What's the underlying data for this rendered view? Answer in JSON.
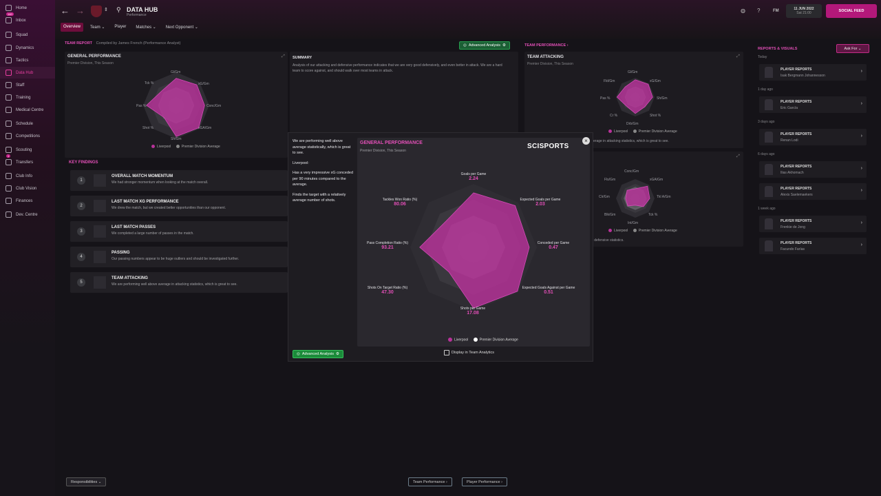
{
  "sidebar": {
    "items": [
      {
        "label": "Home",
        "icon": "home-icon"
      },
      {
        "label": "Inbox",
        "icon": "inbox-icon",
        "badge": "140"
      },
      {
        "label": "Squad",
        "icon": "squad-icon"
      },
      {
        "label": "Dynamics",
        "icon": "dynamics-icon"
      },
      {
        "label": "Tactics",
        "icon": "tactics-icon"
      },
      {
        "label": "Data Hub",
        "icon": "data-hub-icon",
        "active": true
      },
      {
        "label": "Staff",
        "icon": "staff-icon"
      },
      {
        "label": "Training",
        "icon": "training-icon"
      },
      {
        "label": "Medical Centre",
        "icon": "medical-icon"
      },
      {
        "label": "Schedule",
        "icon": "schedule-icon"
      },
      {
        "label": "Competitions",
        "icon": "trophy-icon"
      },
      {
        "label": "Scouting",
        "icon": "scouting-icon"
      },
      {
        "label": "Transfers",
        "icon": "transfers-icon",
        "badge": "1"
      },
      {
        "label": "Club Info",
        "icon": "club-info-icon"
      },
      {
        "label": "Club Vision",
        "icon": "club-vision-icon"
      },
      {
        "label": "Finances",
        "icon": "finances-icon"
      },
      {
        "label": "Dev. Centre",
        "icon": "dev-centre-icon"
      }
    ]
  },
  "header": {
    "title": "DATA HUB",
    "subtitle": "Performance",
    "date": "11 JUN 2022",
    "time": "Sat 21:00",
    "social_feed": "SOCIAL FEED",
    "fm": "FM",
    "tabs": [
      "Overview",
      "Team",
      "Player",
      "Matches",
      "Next Opponent"
    ]
  },
  "team_report": {
    "label": "TEAM REPORT",
    "compiled": "Compiled by James French (Performance Analyst)",
    "advanced_analysis": "Advanced Analysis"
  },
  "general_performance": {
    "title": "GENERAL PERFORMANCE",
    "subtitle": "Premier Division, This Season",
    "axes": [
      "Gl/Gm",
      "xG/Gm",
      "Conc/Gm",
      "xGA/Gm",
      "Sh/Gm",
      "Shot %",
      "Pas %",
      "Tck %"
    ],
    "legend": [
      "Liverpool",
      "Premier Division Average"
    ]
  },
  "summary": {
    "title": "SUMMARY",
    "text": "Analysis of our attacking and defensive performance indicates that we are very good defensively, and even better in attack. We are a hard team to score against, and should walk over most teams in attack."
  },
  "key_findings": {
    "title": "KEY FINDINGS",
    "items": [
      {
        "num": "1",
        "title": "OVERALL MATCH MOMENTUM",
        "desc": "We had stronger momentum when looking at the match overall."
      },
      {
        "num": "2",
        "title": "LAST MATCH XG PERFORMANCE",
        "desc": "We drew the match, but we created better opportunities than our opponent."
      },
      {
        "num": "3",
        "title": "LAST MATCH PASSES",
        "desc": "We completed a large number of passes in the match."
      },
      {
        "num": "4",
        "title": "PASSING",
        "desc": "Our passing numbers appear to be huge outliers and should be investigated further."
      },
      {
        "num": "5",
        "title": "TEAM ATTACKING",
        "desc": "We are performing well above average in attacking statistics, which is great to see."
      }
    ]
  },
  "team_performance": {
    "label": "TEAM PERFORMANCE",
    "attacking_title": "TEAM ATTACKING",
    "attacking_sub": "Premier Division, This Season",
    "attacking_axes": [
      "Gl/Gm",
      "xG/Gm",
      "Sh/Gm",
      "Shot %",
      "Drb/Gm",
      "Cr %",
      "Pas %",
      "Fld/Gm"
    ],
    "attacking_note": "erage in attacking statistics, which is great to see.",
    "defending_axes": [
      "Conc/Gm",
      "xGA/Gm",
      "Tkl A/Gm",
      "Tck %",
      "Int/Gm",
      "Blk/Gm",
      "Clr/Gm",
      "Fls/Gm"
    ],
    "defending_note": "in defensive statistics.",
    "legend": [
      "Liverpool",
      "Premier Division Average"
    ]
  },
  "reports": {
    "title": "REPORTS & VISUALS",
    "ask_for": "Ask For",
    "groups": [
      {
        "time": "Today",
        "items": [
          {
            "type": "PLAYER REPORTS",
            "name": "Isak Bergmann Johannesson"
          }
        ]
      },
      {
        "time": "1 day ago",
        "items": [
          {
            "type": "PLAYER REPORTS",
            "name": "Eric García"
          }
        ]
      },
      {
        "time": "3 days ago",
        "items": [
          {
            "type": "PLAYER REPORTS",
            "name": "Renan Lodi"
          }
        ]
      },
      {
        "time": "6 days ago",
        "items": [
          {
            "type": "PLAYER REPORTS",
            "name": "Ilias Akhomach"
          },
          {
            "type": "PLAYER REPORTS",
            "name": "Alexis Saelemaekers"
          }
        ]
      },
      {
        "time": "1 week ago",
        "items": [
          {
            "type": "PLAYER REPORTS",
            "name": "Frenkie de Jong"
          },
          {
            "type": "PLAYER REPORTS",
            "name": "Facundo Farías"
          }
        ]
      }
    ]
  },
  "modal": {
    "text1": "We are performing well above average statistically, which is great to see.",
    "text2": "Liverpool:",
    "text3": "Has a very impressive xG conceded per 90 minutes compared to the average.",
    "text4": "Finds the target with a relatively average number of shots.",
    "advanced_analysis": "Advanced Analysis",
    "display_label": "Display in Team Analytics",
    "brand": "SCISPORTS"
  },
  "chart_data": {
    "type": "radar",
    "title": "GENERAL PERFORMANCE",
    "subtitle": "Premier Division, This Season",
    "axes": [
      "Goals per Game",
      "Expected Goals per Game",
      "Conceded per Game",
      "Expected Goals Against per Game",
      "Shots per Game",
      "Shots On Target Ratio (%)",
      "Pass Completion Ratio (%)",
      "Tackles Won Ratio (%)"
    ],
    "values": [
      "2.24",
      "2.03",
      "0.47",
      "0.51",
      "17.08",
      "47.30",
      "93.21",
      "80.06"
    ],
    "series": [
      {
        "name": "Liverpool",
        "color": "#b8329a",
        "norm": [
          0.86,
          0.93,
          0.88,
          0.98,
          0.96,
          0.55,
          0.85,
          0.6
        ]
      },
      {
        "name": "Premier Division Average",
        "color": "#e8e8ea",
        "norm": [
          0.5,
          0.5,
          0.5,
          0.5,
          0.5,
          0.5,
          0.5,
          0.5
        ]
      }
    ]
  },
  "footer": {
    "responsibilities": "Responsibilities",
    "team_performance": "Team Performance",
    "player_performance": "Player Performance"
  }
}
